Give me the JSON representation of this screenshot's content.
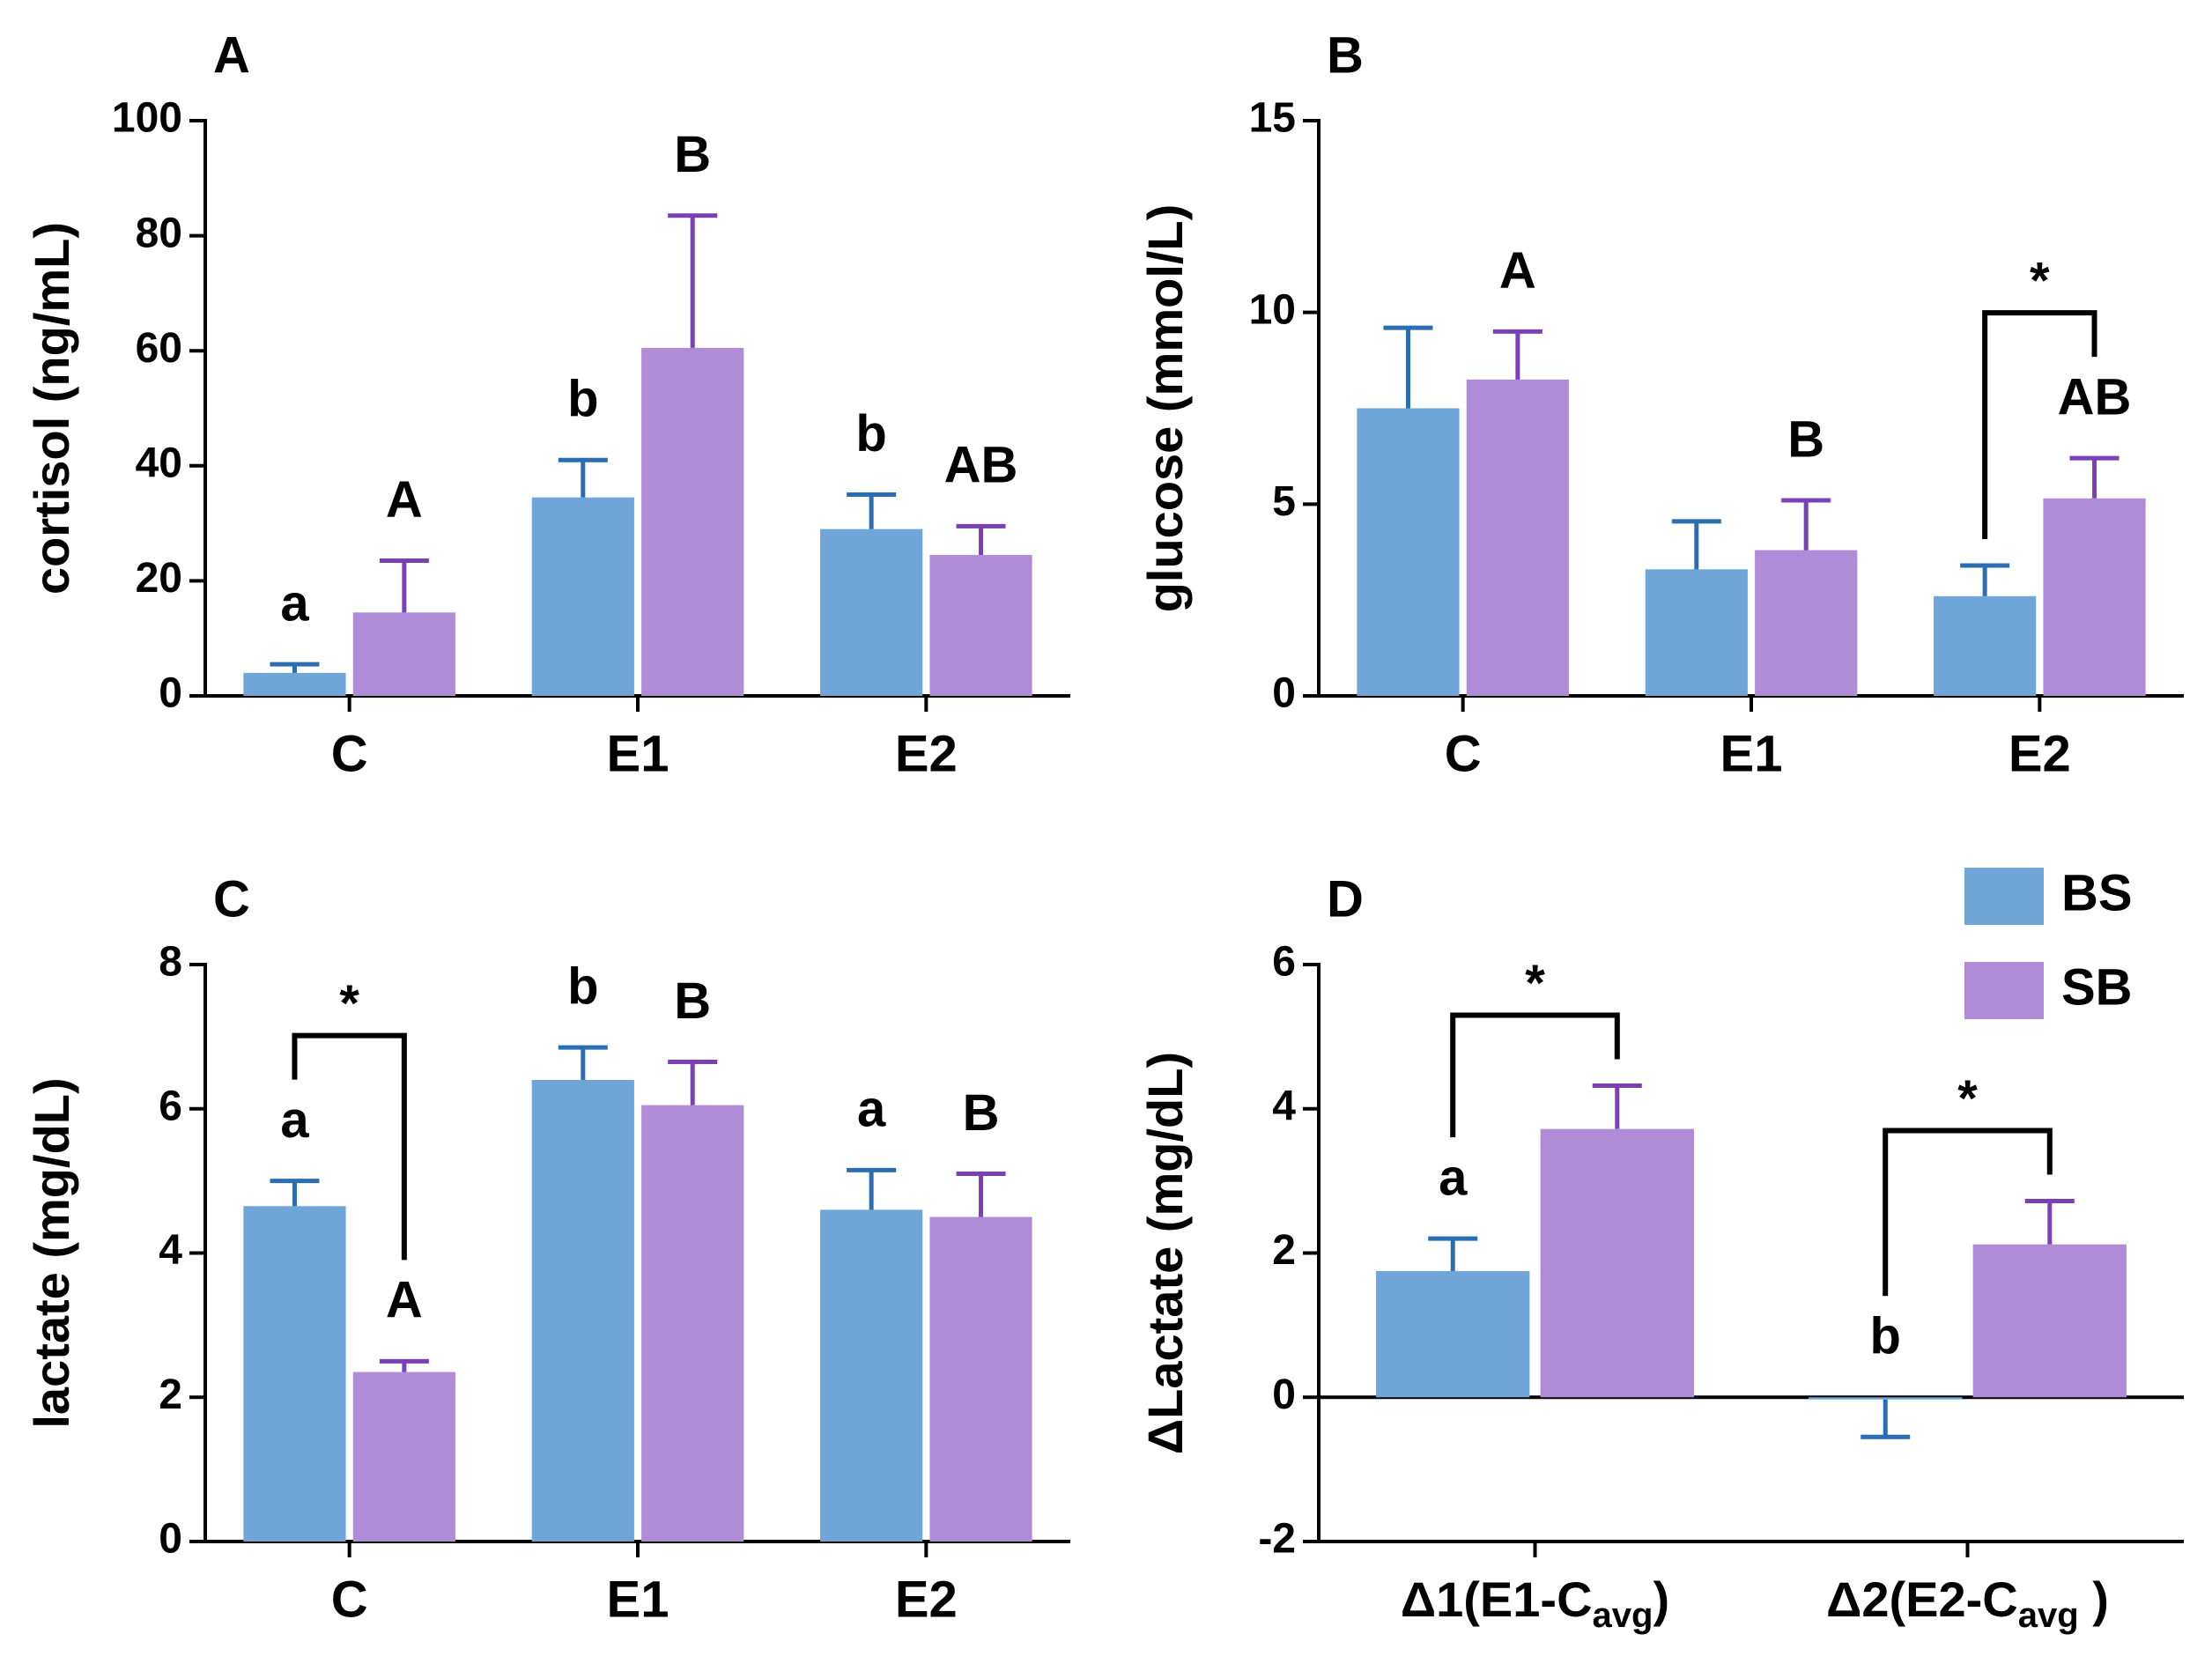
{
  "chart_data": [
    {
      "type": "bar",
      "panel": "A",
      "ylabel": "cortisol (ng/mL)",
      "categories": [
        "C",
        "E1",
        "E2"
      ],
      "ylim": [
        0,
        100
      ],
      "yticks": [
        0,
        20,
        40,
        60,
        80,
        100
      ],
      "series": [
        {
          "color": "#6fa5d7",
          "error_color": "#2a6db3",
          "values": [
            4,
            34.5,
            29
          ],
          "errors": [
            1.5,
            6.5,
            6
          ],
          "labels": [
            "a",
            "b",
            "b"
          ]
        },
        {
          "color": "#b08bd8",
          "error_color": "#7a40b4",
          "values": [
            14.5,
            60.5,
            24.5
          ],
          "errors": [
            9,
            23,
            5
          ],
          "labels": [
            "A",
            "B",
            "AB"
          ]
        }
      ],
      "significance": [
        null,
        null,
        null
      ]
    },
    {
      "type": "bar",
      "panel": "B",
      "ylabel": "glucose (mmol/L)",
      "categories": [
        "C",
        "E1",
        "E2"
      ],
      "ylim": [
        0,
        15
      ],
      "yticks": [
        0,
        5,
        10,
        15
      ],
      "series": [
        {
          "color": "#6fa5d7",
          "error_color": "#2a6db3",
          "values": [
            7.5,
            3.3,
            2.6
          ],
          "errors": [
            2.1,
            1.25,
            0.8
          ],
          "labels": [
            null,
            null,
            null
          ]
        },
        {
          "color": "#b08bd8",
          "error_color": "#7a40b4",
          "values": [
            8.25,
            3.8,
            5.15
          ],
          "errors": [
            1.25,
            1.3,
            1.05
          ],
          "labels": [
            "A",
            "B",
            "AB"
          ]
        }
      ],
      "significance": [
        null,
        null,
        "*"
      ]
    },
    {
      "type": "bar",
      "panel": "C",
      "ylabel": "lactate (mg/dL)",
      "categories": [
        "C",
        "E1",
        "E2"
      ],
      "ylim": [
        0,
        8
      ],
      "yticks": [
        0,
        2,
        4,
        6,
        8
      ],
      "series": [
        {
          "color": "#6fa5d7",
          "error_color": "#2a6db3",
          "values": [
            4.65,
            6.4,
            4.6
          ],
          "errors": [
            0.35,
            0.45,
            0.55
          ],
          "labels": [
            "a",
            "b",
            "a"
          ]
        },
        {
          "color": "#b08bd8",
          "error_color": "#7a40b4",
          "values": [
            2.35,
            6.05,
            4.5
          ],
          "errors": [
            0.15,
            0.6,
            0.6
          ],
          "labels": [
            "A",
            "B",
            "B"
          ]
        }
      ],
      "significance": [
        "*",
        null,
        null
      ]
    },
    {
      "type": "bar",
      "panel": "D",
      "ylabel": "ΔLactate (mg/dL)",
      "categories": [
        {
          "text": "Δ1(E1-C",
          "sub": "avg",
          "tail": ")"
        },
        {
          "text": "Δ2(E2-C",
          "sub": "avg",
          "tail": " )"
        }
      ],
      "ylim": [
        -2,
        6
      ],
      "yticks": [
        -2,
        0,
        2,
        4,
        6
      ],
      "legend": "upper right",
      "series": [
        {
          "name": "BS",
          "color": "#6fa5d7",
          "error_color": "#2a6db3",
          "values": [
            1.75,
            -0.03
          ],
          "errors": [
            0.45,
            0.52
          ],
          "labels": [
            "a",
            "b"
          ]
        },
        {
          "name": "SB",
          "color": "#b08bd8",
          "error_color": "#7a40b4",
          "values": [
            3.72,
            2.12
          ],
          "errors": [
            0.6,
            0.6
          ],
          "labels": [
            null,
            null
          ]
        }
      ],
      "significance": [
        "*",
        "*"
      ]
    }
  ]
}
